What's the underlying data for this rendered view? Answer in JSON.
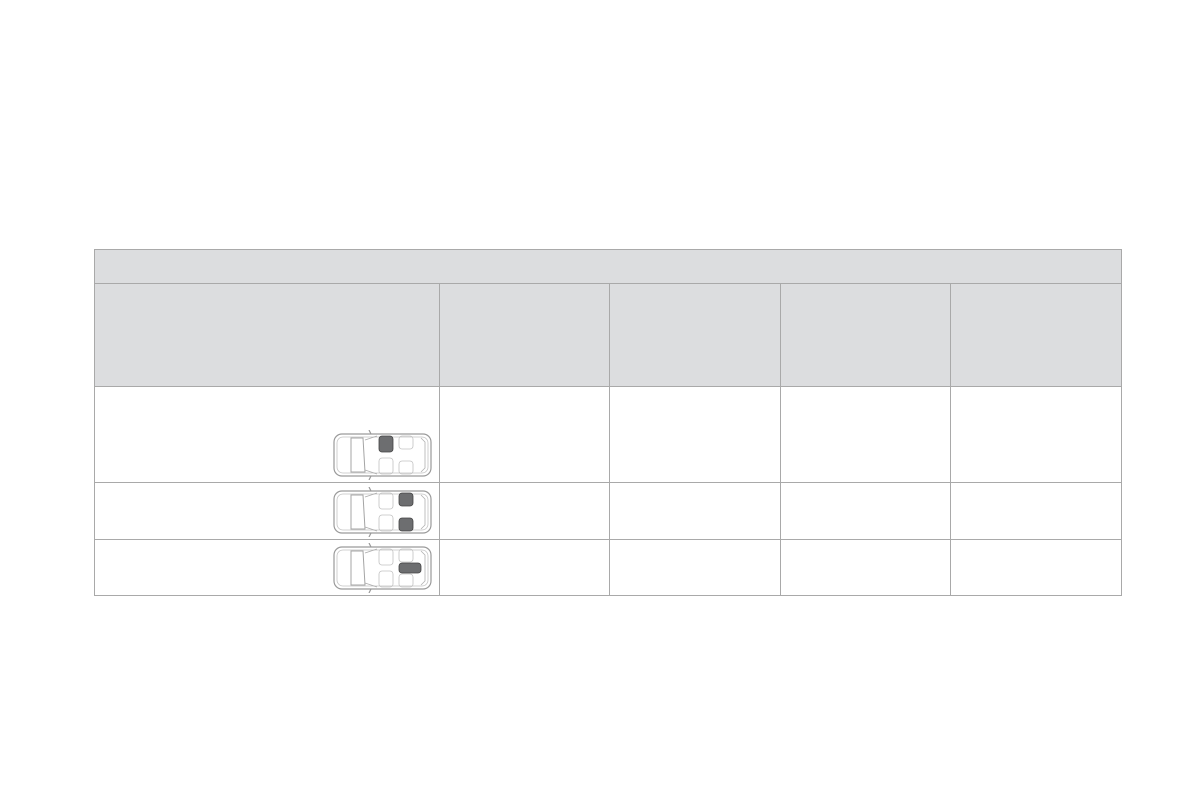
{
  "colors": {
    "header_bg": "#dcdddf",
    "border": "#a9a9a9",
    "seat_highlight": "#6d6e70"
  },
  "table": {
    "title_row": "",
    "column_headers": [
      "",
      "",
      "",
      "",
      ""
    ],
    "rows": [
      {
        "seat_icon": "car-seat-front-passenger-icon",
        "highlight": [
          "front-passenger"
        ],
        "cells": [
          "",
          "",
          "",
          "",
          ""
        ]
      },
      {
        "seat_icon": "car-seat-rear-outer-icon",
        "highlight": [
          "rear-left",
          "rear-right"
        ],
        "cells": [
          "",
          "",
          "",
          "",
          ""
        ]
      },
      {
        "seat_icon": "car-seat-rear-center-icon",
        "highlight": [
          "rear-center"
        ],
        "cells": [
          "",
          "",
          "",
          "",
          ""
        ]
      }
    ]
  }
}
